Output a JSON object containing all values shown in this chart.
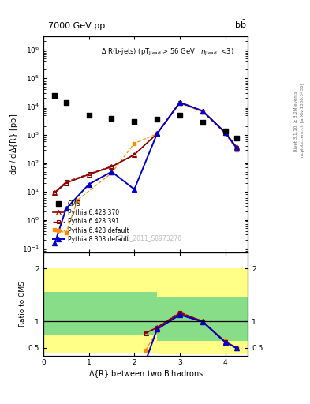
{
  "title_top": "7000 GeV pp",
  "title_right": "b$\\mathsf{\\bar{b}}$",
  "annotation": "$\\Delta$ R(b-jets) (pT$_{\\mathsf{Jlead}}$ > 56 GeV, |$\\eta_{\\mathsf{Jlead}}$| <3)",
  "watermark": "CMS_2011_S8973270",
  "ylabel_main": "d$\\sigma$ / d$\\Delta${R} [pb]",
  "ylabel_ratio": "Ratio to CMS",
  "xlabel": "$\\Delta${R} between two B hadrons",
  "right_label_top": "Rivet 3.1.10, ≥ 3.2M events",
  "right_label_bot": "mcplots.cern.ch [arXiv:1306.3436]",
  "cms_x": [
    0.25,
    0.5,
    1.0,
    1.5,
    2.0,
    2.5,
    3.0,
    3.5,
    4.0,
    4.25
  ],
  "cms_y": [
    25000.0,
    14000.0,
    4800,
    3800,
    3000,
    3500,
    5000,
    2800,
    1400,
    750
  ],
  "py370_x": [
    0.25,
    0.5,
    1.0,
    1.5,
    2.0,
    2.5,
    3.0,
    3.5,
    4.0,
    4.25
  ],
  "py370_y": [
    9.0,
    20,
    40,
    75,
    200,
    1100,
    14000,
    7000,
    1200,
    370
  ],
  "py391_x": [
    0.25,
    0.5,
    1.0,
    1.5,
    2.0,
    2.5,
    3.0,
    3.5,
    4.0,
    4.25
  ],
  "py391_y": [
    9.5,
    22,
    42,
    78,
    200,
    1100,
    14000,
    7000,
    1200,
    350
  ],
  "pydef_x": [
    0.25,
    0.5,
    0.75,
    1.5,
    2.0,
    2.5,
    3.0,
    3.5,
    4.0,
    4.25
  ],
  "pydef_y": [
    0.45,
    0.35,
    5.0,
    45,
    500,
    1100,
    13000,
    6500,
    1100,
    300
  ],
  "py8_x": [
    0.25,
    0.5,
    1.0,
    1.5,
    2.0,
    2.5,
    3.0,
    3.5,
    4.0,
    4.25
  ],
  "py8_y": [
    0.15,
    2.5,
    18,
    50,
    12,
    1100,
    14000,
    7000,
    1200,
    340
  ],
  "ratio_py370_x": [
    2.25,
    2.5,
    3.0,
    3.5,
    4.0,
    4.25
  ],
  "ratio_py370_y": [
    0.78,
    0.88,
    1.15,
    1.0,
    0.61,
    0.5
  ],
  "ratio_py391_x": [
    2.25,
    2.5,
    3.0,
    3.5,
    4.0,
    4.25
  ],
  "ratio_py391_y": [
    0.77,
    0.88,
    1.17,
    1.0,
    0.61,
    0.48
  ],
  "ratio_pydef_x": [
    2.25,
    2.5,
    3.0,
    3.5,
    4.0,
    4.25
  ],
  "ratio_pydef_y": [
    0.45,
    0.82,
    1.17,
    1.0,
    0.62,
    0.5
  ],
  "ratio_py8_x": [
    2.25,
    2.5,
    3.0,
    3.5,
    4.0,
    4.25
  ],
  "ratio_py8_y": [
    0.25,
    0.85,
    1.12,
    0.99,
    0.6,
    0.49
  ],
  "band_edges": [
    0.0,
    0.5,
    1.5,
    2.5,
    3.0,
    3.5,
    4.5
  ],
  "band_green_lo": [
    0.75,
    0.75,
    0.75,
    0.62,
    0.62,
    0.62,
    0.62
  ],
  "band_green_hi": [
    1.55,
    1.55,
    1.55,
    1.45,
    1.45,
    1.45,
    1.45
  ],
  "band_yellow_lo": [
    0.4,
    0.4,
    0.4,
    0.38,
    0.38,
    0.38,
    0.38
  ],
  "band_yellow_hi": [
    2.0,
    2.0,
    2.0,
    2.0,
    2.0,
    2.0,
    2.0
  ],
  "color_py370": "#8B0000",
  "color_py391": "#8B0000",
  "color_pydef": "#FF8C00",
  "color_py8": "#0000CD",
  "xlim": [
    0,
    4.5
  ],
  "ylim_main": [
    0.07,
    3000000.0
  ],
  "ylim_ratio": [
    0.35,
    2.3
  ]
}
